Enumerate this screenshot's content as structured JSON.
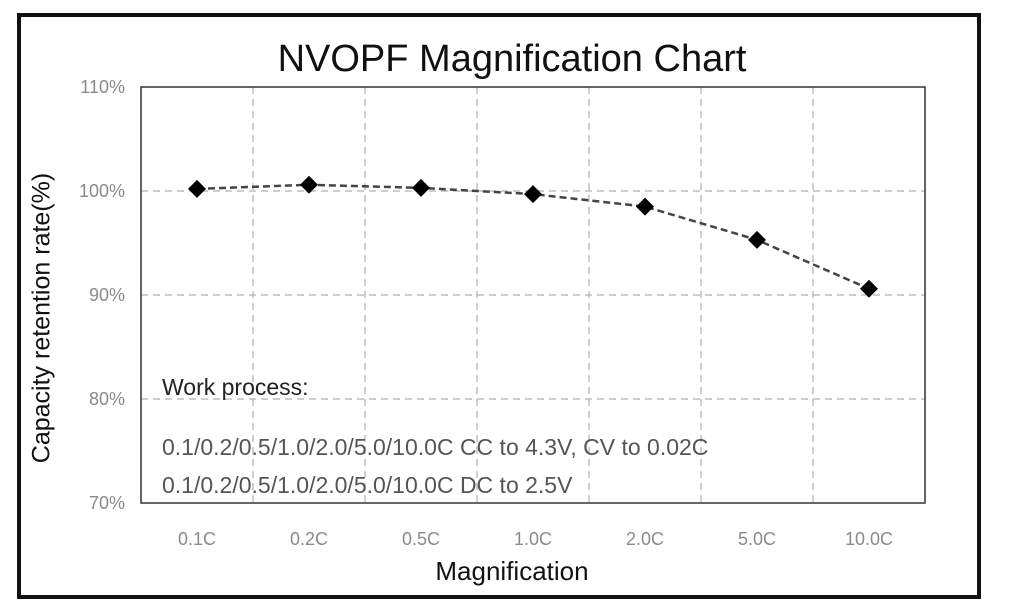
{
  "chart_data": {
    "type": "line",
    "title": "NVOPF Magnification Chart",
    "xlabel": "Magnification",
    "ylabel": "Capacity retention rate(%)",
    "categories": [
      "0.1C",
      "0.2C",
      "0.5C",
      "1.0C",
      "2.0C",
      "5.0C",
      "10.0C"
    ],
    "series": [
      {
        "values": [
          100.2,
          100.6,
          100.3,
          99.7,
          98.5,
          95.3,
          90.6
        ]
      }
    ],
    "ylim": [
      70,
      110
    ],
    "yticks": [
      "70%",
      "80%",
      "90%",
      "100%",
      "110%"
    ],
    "grid": true,
    "line_style": "dashed",
    "marker": "diamond",
    "color": "#000000",
    "annotations": [
      "Work process:",
      "0.1/0.2/0.5/1.0/2.0/5.0/10.0C CC to 4.3V, CV to 0.02C",
      "0.1/0.2/0.5/1.0/2.0/5.0/10.0C DC to 2.5V"
    ]
  }
}
